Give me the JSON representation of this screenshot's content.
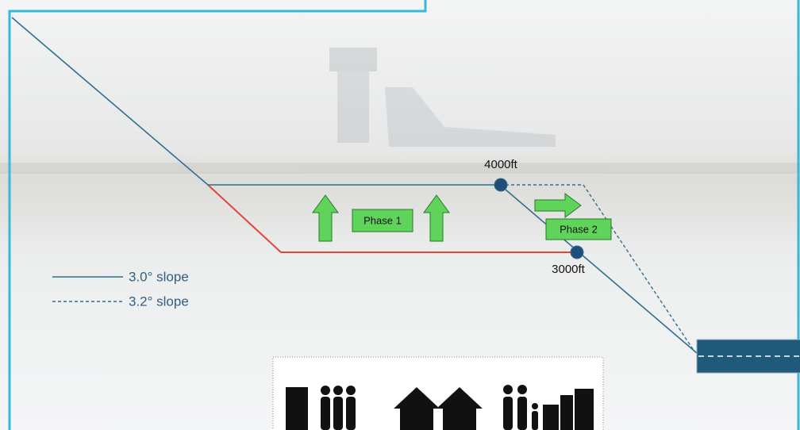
{
  "labels": {
    "upper_altitude": "4000ft",
    "lower_altitude": "3000ft",
    "phase_1": "Phase 1",
    "phase_2": "Phase 2"
  },
  "legend": [
    {
      "style": "solid",
      "label": "3.0° slope"
    },
    {
      "style": "dashed",
      "label": "3.2° slope"
    }
  ]
}
